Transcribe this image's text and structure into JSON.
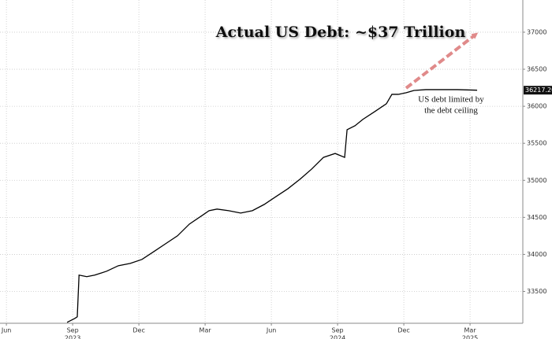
{
  "chart_data": {
    "type": "line",
    "annotations": [
      "Actual US Debt: ~$37 Trillion",
      "US debt limited by",
      "the debt ceiling"
    ],
    "x": [
      2.75,
      3.1,
      3.21,
      3.29,
      3.64,
      4.0,
      4.54,
      5.07,
      5.61,
      6.14,
      6.68,
      7.21,
      7.75,
      8.29,
      8.82,
      9.18,
      9.54,
      10.07,
      10.61,
      11.14,
      11.68,
      12.21,
      12.75,
      13.29,
      13.82,
      14.36,
      14.89,
      15.32,
      15.43,
      15.79,
      16.14,
      16.68,
      17.21,
      17.46,
      17.75,
      18.11,
      18.46,
      19.0,
      19.71,
      20.43,
      21.32
    ],
    "series": [
      {
        "color": "#000000",
        "values": [
          33083,
          33136,
          33157,
          33720,
          33699,
          33720,
          33773,
          33847,
          33879,
          33932,
          34038,
          34144,
          34251,
          34410,
          34516,
          34590,
          34612,
          34590,
          34558,
          34590,
          34675,
          34781,
          34887,
          35013,
          35151,
          35310,
          35363,
          35310,
          35684,
          35737,
          35822,
          35928,
          36034,
          36161,
          36161,
          36183,
          36214,
          36225,
          36225,
          36225,
          36217.2
        ],
        "value_labels": [
          null,
          null,
          null,
          null,
          null,
          null,
          null,
          null,
          null,
          null,
          null,
          null,
          null,
          null,
          null,
          null,
          null,
          null,
          null,
          null,
          null,
          null,
          null,
          null,
          null,
          null,
          null,
          null,
          null,
          null,
          null,
          null,
          null,
          null,
          null,
          null,
          null,
          null,
          null,
          null,
          "36217.20"
        ]
      }
    ],
    "xlim": [
      -0.29,
      23.39
    ],
    "xticks": [
      {
        "value": 0,
        "label": "Jun"
      },
      {
        "value": 3,
        "label": "Sep"
      },
      {
        "value": 6,
        "label": "Dec"
      },
      {
        "value": 9,
        "label": "Mar"
      },
      {
        "value": 12,
        "label": "Jun"
      },
      {
        "value": 15,
        "label": "Sep"
      },
      {
        "value": 18,
        "label": "Dec"
      },
      {
        "value": 21,
        "label": "Mar"
      }
    ],
    "xyears": [
      {
        "value": 3,
        "label": "2023"
      },
      {
        "value": 15,
        "label": "2024"
      },
      {
        "value": 21,
        "label": "2025"
      }
    ],
    "ylim": [
      33070,
      37435
    ],
    "yticks": [
      33500,
      34000,
      34500,
      35000,
      35500,
      36000,
      36500,
      37000
    ],
    "grid": true
  }
}
